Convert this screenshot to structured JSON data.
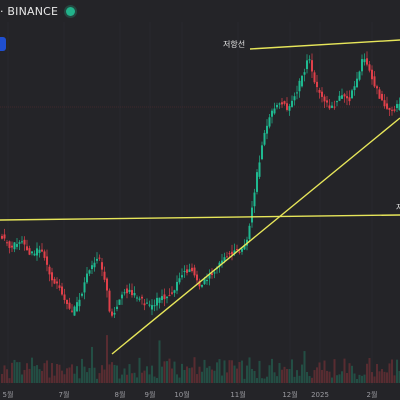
{
  "header": {
    "exchange": "· BINANCE",
    "status_color": "#22b38b"
  },
  "annotations": {
    "resistance_label": "저항선",
    "right_edge_label": "저"
  },
  "x_axis": {
    "labels": [
      "5월",
      "7월",
      "8월",
      "9월",
      "10월",
      "11월",
      "12월",
      "2025",
      "2월"
    ]
  },
  "colors": {
    "up": "#1fb990",
    "down": "#e0404a",
    "trendline": "#e7e65a",
    "background": "#242428"
  }
}
